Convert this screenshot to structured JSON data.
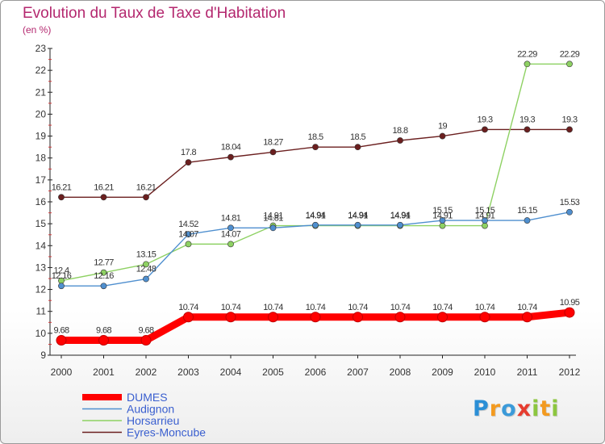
{
  "title": "Evolution du Taux de Taxe d'Habitation",
  "subtitle": "(en %)",
  "logo": {
    "text": "Proxiti",
    "letters": [
      {
        "ch": "P",
        "color": "#2b8fd6"
      },
      {
        "ch": "r",
        "color": "#f39a1f"
      },
      {
        "ch": "o",
        "color": "#3b9ad9"
      },
      {
        "ch": "x",
        "color": "#e63c2f"
      },
      {
        "ch": "i",
        "color": "#8cc63f"
      },
      {
        "ch": "t",
        "color": "#f39a1f"
      },
      {
        "ch": "i",
        "color": "#8cc63f"
      }
    ]
  },
  "chart_data": {
    "type": "line",
    "title": "Evolution du Taux de Taxe d'Habitation",
    "subtitle": "(en %)",
    "x": [
      "2000",
      "2001",
      "2002",
      "2003",
      "2004",
      "2005",
      "2006",
      "2007",
      "2008",
      "2009",
      "2010",
      "2011",
      "2012"
    ],
    "ylim": [
      9,
      23
    ],
    "yticks": [
      9,
      10,
      11,
      12,
      13,
      14,
      15,
      16,
      17,
      18,
      19,
      20,
      21,
      22,
      23
    ],
    "grid": false,
    "legend_position": "bottom-left",
    "series": [
      {
        "name": "DUMES",
        "color": "#ff0000",
        "values": [
          9.68,
          9.68,
          9.68,
          10.74,
          10.74,
          10.74,
          10.74,
          10.74,
          10.74,
          10.74,
          10.74,
          10.74,
          10.95
        ],
        "labels": [
          "9.68",
          "9.68",
          "9.68",
          "10.74",
          "10.74",
          "10.74",
          "10.74",
          "10.74",
          "10.74",
          "10.74",
          "10.74",
          "10.74",
          "10.95"
        ]
      },
      {
        "name": "Audignon",
        "color": "#4f8fcf",
        "values": [
          12.16,
          12.16,
          12.48,
          14.52,
          14.81,
          14.81,
          14.94,
          14.94,
          14.94,
          15.15,
          15.15,
          15.15,
          15.53
        ],
        "labels": [
          "12.16",
          "12.16",
          "12.48",
          "14.52",
          "14.81",
          "14.81",
          "14.94",
          "14.94",
          "14.94",
          "15.15",
          "15.15",
          "15.15",
          "15.53"
        ]
      },
      {
        "name": "Horsarrieu",
        "color": "#8ed163",
        "values": [
          12.4,
          12.77,
          13.15,
          14.07,
          14.07,
          14.91,
          14.91,
          14.91,
          14.91,
          14.91,
          14.91,
          22.29,
          22.29
        ],
        "labels": [
          "12.4",
          "12.77",
          "13.15",
          "14.07",
          "14.07",
          "14.91",
          "14.91",
          "14.91",
          "14.91",
          "14.91",
          "14.91",
          "22.29",
          "22.29"
        ]
      },
      {
        "name": "Eyres-Moncube",
        "color": "#6b1f1f",
        "values": [
          16.21,
          16.21,
          16.21,
          17.8,
          18.04,
          18.27,
          18.5,
          18.5,
          18.8,
          19,
          19.3,
          19.3,
          19.3
        ],
        "labels": [
          "16.21",
          "16.21",
          "16.21",
          "17.8",
          "18.04",
          "18.27",
          "18.5",
          "18.5",
          "18.8",
          "19",
          "19.3",
          "19.3",
          "19.3"
        ]
      }
    ]
  }
}
